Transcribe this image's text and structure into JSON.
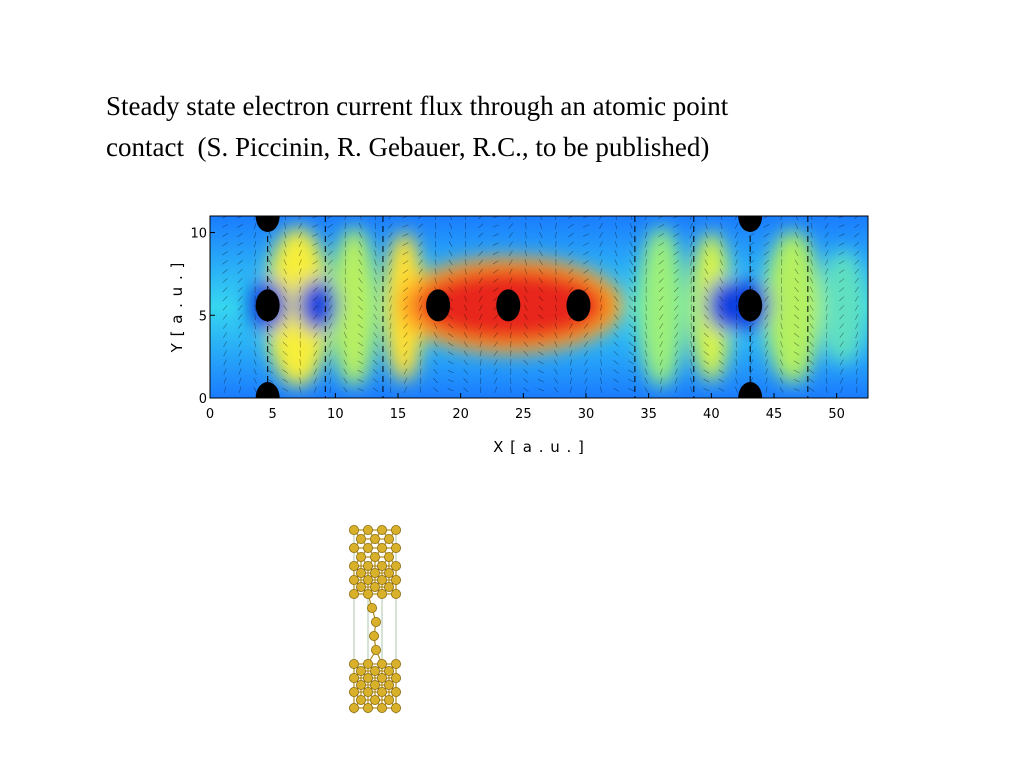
{
  "slide": {
    "title_line1": "Steady state electron current flux through an atomic point",
    "title_line2": "contact  (S. Piccinin, R. Gebauer, R.C., to be published)"
  },
  "chart_data": {
    "type": "heatmap",
    "title": "",
    "xlabel": "X  [ a . u . ]",
    "ylabel": "Y  [ a . u . ]",
    "xlim": [
      0,
      52.5
    ],
    "ylim": [
      0,
      11
    ],
    "x_ticks": [
      0,
      5,
      10,
      15,
      20,
      25,
      30,
      35,
      40,
      45,
      50
    ],
    "y_ticks": [
      0,
      5,
      10
    ],
    "grid": false,
    "colormap": "jet",
    "atom_positions": [
      {
        "x": 4.6,
        "y": 11
      },
      {
        "x": 4.6,
        "y": 5.6
      },
      {
        "x": 4.6,
        "y": 0
      },
      {
        "x": 18.2,
        "y": 5.6
      },
      {
        "x": 23.8,
        "y": 5.6
      },
      {
        "x": 29.4,
        "y": 5.6
      },
      {
        "x": 43.1,
        "y": 11
      },
      {
        "x": 43.1,
        "y": 5.6
      },
      {
        "x": 43.1,
        "y": 0
      }
    ],
    "dashed_lines_x": [
      4.6,
      9.2,
      13.8,
      33.9,
      38.6,
      43.1,
      47.7
    ],
    "high_flux_region": {
      "x": [
        15,
        33
      ],
      "y": [
        3,
        8.5
      ]
    },
    "colors": {
      "low": "#0a1ed8",
      "mid": "#20d0ff",
      "high": "#d81a0a",
      "atoms": "#000000",
      "vectors": "#000000"
    }
  }
}
